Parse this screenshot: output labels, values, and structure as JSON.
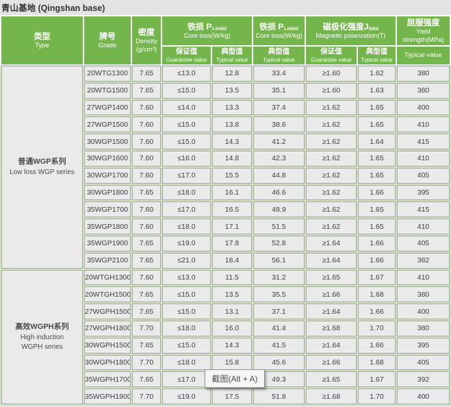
{
  "title": "青山基地 (Qingshan base)",
  "colors": {
    "header_green": "#74b64c",
    "cell_background": "#eaeaea",
    "row_gap_green": "#cfe2bd",
    "page_background": "#e3e3e3",
    "header_text": "#ffffff"
  },
  "table": {
    "header": {
      "type": {
        "zh": "类型",
        "en": "Type"
      },
      "grade": {
        "zh": "牌号",
        "en": "Grade"
      },
      "density": {
        "zh": "密度",
        "en": "Density",
        "unit": "(g/cm³)"
      },
      "core_loss_400": {
        "zh": "铁损",
        "symbol": "P",
        "subscript": "1.0/400",
        "en": "Core loss(W/kg)"
      },
      "core_loss_800": {
        "zh": "铁损",
        "symbol": "P",
        "subscript": "1.0/800",
        "en": "Core loss(W/kg)"
      },
      "magnetic_polarization": {
        "zh": "磁极化强度",
        "symbol": "J",
        "subscript": "5000",
        "en": "Magnetic polarization(T)"
      },
      "yield_strength": {
        "zh": "屈服强度",
        "en_line1": "Yield",
        "en_line2": "strength(MPa)"
      },
      "sub": {
        "guarantee": {
          "zh": "保证值",
          "en": "Guarantee value"
        },
        "typical": {
          "zh": "典型值",
          "en": "Typical value"
        },
        "typical_en": "Typical value"
      }
    },
    "row_fields": [
      "grade",
      "density",
      "guarantee_400",
      "typical_400",
      "typical_800",
      "guarantee_j",
      "typical_j",
      "yield_mpa"
    ],
    "groups": [
      {
        "type_zh": "普通WGP系列",
        "type_en_lines": [
          "Low loss WGP series"
        ],
        "rows": [
          [
            "20WTG1300",
            "7.65",
            "≤13.0",
            "12.8",
            "33.4",
            "≥1.60",
            "1.62",
            "380"
          ],
          [
            "20WTG1500",
            "7.65",
            "≤15.0",
            "13.5",
            "35.1",
            "≥1.60",
            "1.63",
            "380"
          ],
          [
            "27WGP1400",
            "7.60",
            "≤14.0",
            "13.3",
            "37.4",
            "≥1.62",
            "1.65",
            "400"
          ],
          [
            "27WGP1500",
            "7.60",
            "≤15.0",
            "13.8",
            "38.6",
            "≥1.62",
            "1.65",
            "410"
          ],
          [
            "30WGP1500",
            "7.60",
            "≤15.0",
            "14.3",
            "41.2",
            "≥1.62",
            "1.64",
            "415"
          ],
          [
            "30WGP1600",
            "7.60",
            "≤16.0",
            "14.8",
            "42.3",
            "≥1.62",
            "1.65",
            "410"
          ],
          [
            "30WGP1700",
            "7.60",
            "≤17.0",
            "15.5",
            "44.8",
            "≥1.62",
            "1.65",
            "405"
          ],
          [
            "30WGP1800",
            "7.65",
            "≤18.0",
            "16.1",
            "46.6",
            "≥1.62",
            "1.66",
            "395"
          ],
          [
            "35WGP1700",
            "7.60",
            "≤17.0",
            "16.5",
            "48.9",
            "≥1.62",
            "1.65",
            "415"
          ],
          [
            "35WGP1800",
            "7.60",
            "≤18.0",
            "17.1",
            "51.5",
            "≥1.62",
            "1.65",
            "410"
          ],
          [
            "35WGP1900",
            "7.65",
            "≤19.0",
            "17.8",
            "52.8",
            "≥1.64",
            "1.66",
            "405"
          ],
          [
            "35WGP2100",
            "7.65",
            "≤21.0",
            "18.4",
            "56.1",
            "≥1.64",
            "1.66",
            "382"
          ]
        ]
      },
      {
        "type_zh": "高效WGPH系列",
        "type_en_lines": [
          "High induction",
          "WGPH series"
        ],
        "rows": [
          [
            "20WTGH1300",
            "7.60",
            "≤13.0",
            "11.5",
            "31.2",
            "≥1.65",
            "1.67",
            "410"
          ],
          [
            "20WTGH1500",
            "7.65",
            "≤15.0",
            "13.5",
            "35.5",
            "≥1.66",
            "1.68",
            "380"
          ],
          [
            "27WGPH1500",
            "7.65",
            "≤15.0",
            "13.1",
            "37.1",
            "≥1.64",
            "1.66",
            "400"
          ],
          [
            "27WGPH1800",
            "7.70",
            "≤18.0",
            "16.0",
            "41.4",
            "≥1.68",
            "1.70",
            "380"
          ],
          [
            "30WGPH1500",
            "7.65",
            "≤15.0",
            "14.3",
            "41.5",
            "≥1.64",
            "1.66",
            "395"
          ],
          [
            "30WGPH1800",
            "7.70",
            "≤18.0",
            "15.8",
            "45.6",
            "≥1.66",
            "1.68",
            "405"
          ],
          [
            "35WGPH1700",
            "7.65",
            "≤17.0",
            "",
            "49.3",
            "≥1.65",
            "1.67",
            "392"
          ],
          [
            "35WGPH1900",
            "7.70",
            "≤19.0",
            "17.5",
            "51.8",
            "≥1.68",
            "1.70",
            "400"
          ]
        ]
      }
    ]
  },
  "tooltip": {
    "text": "截图(Alt + A)"
  }
}
